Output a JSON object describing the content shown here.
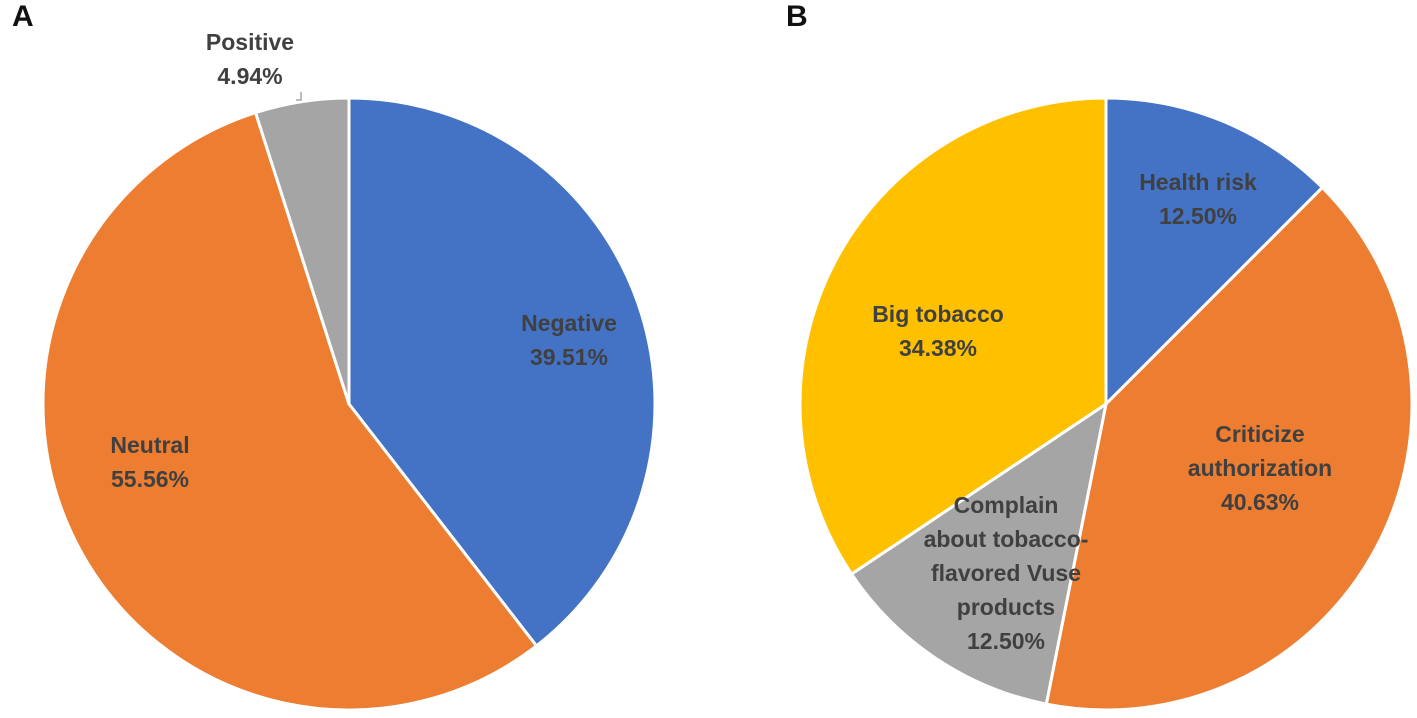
{
  "panels": {
    "a_letter": "A",
    "b_letter": "B"
  },
  "chart_data": [
    {
      "type": "pie",
      "panel": "A",
      "title": "",
      "start_angle_deg": 0,
      "direction": "clockwise",
      "slices": [
        {
          "name": "Negative",
          "value": 39.51,
          "label": [
            "Negative",
            "39.51%"
          ],
          "color": "#4472C4"
        },
        {
          "name": "Neutral",
          "value": 55.56,
          "label": [
            "Neutral",
            "55.56%"
          ],
          "color": "#ED7D31"
        },
        {
          "name": "Positive",
          "value": 4.94,
          "label": [
            "Positive",
            "4.94%"
          ],
          "color": "#A5A5A5"
        }
      ]
    },
    {
      "type": "pie",
      "panel": "B",
      "title": "",
      "start_angle_deg": 0,
      "direction": "clockwise",
      "slices": [
        {
          "name": "Health risk",
          "value": 12.5,
          "label": [
            "Health risk",
            "12.50%"
          ],
          "color": "#4472C4"
        },
        {
          "name": "Criticize authorization",
          "value": 40.63,
          "label": [
            "Criticize",
            "authorization",
            "40.63%"
          ],
          "color": "#ED7D31"
        },
        {
          "name": "Complain about tobacco-flavored Vuse products",
          "value": 12.5,
          "label": [
            "Complain",
            "about tobacco-",
            "flavored Vuse",
            "products",
            "12.50%"
          ],
          "color": "#A5A5A5"
        },
        {
          "name": "Big tobacco",
          "value": 34.38,
          "label": [
            "Big tobacco",
            "34.38%"
          ],
          "color": "#FFC000"
        }
      ]
    }
  ]
}
